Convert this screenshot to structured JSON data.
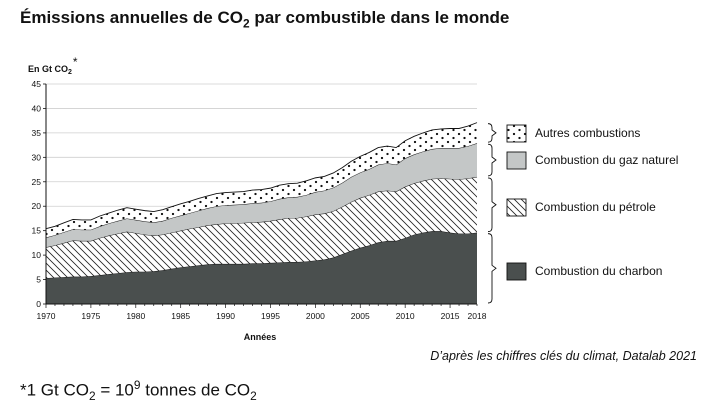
{
  "title": {
    "prefix": "Émissions annuelles de CO",
    "sub": "2",
    "suffix": " par combustible dans le monde"
  },
  "source": "D’après les chiffres clés du climat, Datalab 2021",
  "footnote": {
    "a": "*1 Gt CO",
    "sub": "2",
    "b": " = 10",
    "sup": "9",
    "c": " tonnes de CO",
    "sub2": "2"
  },
  "colors": {
    "coal": "#4a4f4e",
    "gas": "#c4c7c7",
    "oil_hatch": "#222222",
    "others_dot": "#111111",
    "outline": "#111111"
  },
  "chart_data": {
    "type": "area",
    "stacked": true,
    "ylabel": "En Gt CO",
    "ylabel_sub": "2",
    "ylabel_star": "*",
    "xlabel": "Années",
    "ylim": [
      0,
      45
    ],
    "xlim": [
      1970,
      2018
    ],
    "yticks": [
      0,
      5,
      10,
      15,
      20,
      25,
      30,
      35,
      40,
      45
    ],
    "xticks": [
      1970,
      1975,
      1980,
      1985,
      1990,
      1995,
      2000,
      2005,
      2010,
      2015,
      2018
    ],
    "grid": "horizontal",
    "legend_position": "right",
    "x": [
      1970,
      1971,
      1972,
      1973,
      1974,
      1975,
      1976,
      1977,
      1978,
      1979,
      1980,
      1981,
      1982,
      1983,
      1984,
      1985,
      1986,
      1987,
      1988,
      1989,
      1990,
      1991,
      1992,
      1993,
      1994,
      1995,
      1996,
      1997,
      1998,
      1999,
      2000,
      2001,
      2002,
      2003,
      2004,
      2005,
      2006,
      2007,
      2008,
      2009,
      2010,
      2011,
      2012,
      2013,
      2014,
      2015,
      2016,
      2017,
      2018
    ],
    "series": [
      {
        "name": "Combustion du charbon",
        "values": [
          5.3,
          5.4,
          5.5,
          5.6,
          5.6,
          5.7,
          5.9,
          6.1,
          6.3,
          6.5,
          6.6,
          6.6,
          6.7,
          6.9,
          7.2,
          7.5,
          7.7,
          7.9,
          8.1,
          8.2,
          8.2,
          8.2,
          8.2,
          8.3,
          8.3,
          8.4,
          8.5,
          8.6,
          8.6,
          8.7,
          8.9,
          9.1,
          9.5,
          10.2,
          10.9,
          11.5,
          12.0,
          12.6,
          12.9,
          12.9,
          13.5,
          14.2,
          14.6,
          14.9,
          14.9,
          14.6,
          14.4,
          14.4,
          14.6
        ]
      },
      {
        "name": "Combustion du pétrole",
        "values": [
          6.3,
          6.6,
          7.0,
          7.4,
          7.3,
          7.2,
          7.6,
          7.9,
          8.1,
          8.3,
          7.9,
          7.6,
          7.3,
          7.3,
          7.4,
          7.5,
          7.7,
          7.8,
          8.0,
          8.1,
          8.3,
          8.3,
          8.4,
          8.4,
          8.5,
          8.6,
          8.8,
          9.0,
          9.0,
          9.2,
          9.4,
          9.4,
          9.5,
          9.7,
          10.0,
          10.2,
          10.3,
          10.4,
          10.3,
          10.1,
          10.5,
          10.5,
          10.6,
          10.7,
          10.8,
          11.0,
          11.1,
          11.3,
          11.4
        ]
      },
      {
        "name": "Combustion du gaz naturel",
        "values": [
          2.0,
          2.1,
          2.2,
          2.3,
          2.3,
          2.3,
          2.4,
          2.5,
          2.6,
          2.7,
          2.7,
          2.7,
          2.7,
          2.8,
          3.0,
          3.1,
          3.2,
          3.4,
          3.5,
          3.7,
          3.7,
          3.8,
          3.8,
          3.9,
          3.9,
          4.0,
          4.2,
          4.2,
          4.3,
          4.4,
          4.6,
          4.7,
          4.8,
          4.9,
          5.1,
          5.2,
          5.3,
          5.5,
          5.6,
          5.5,
          5.8,
          5.9,
          6.0,
          6.1,
          6.2,
          6.3,
          6.4,
          6.6,
          6.9
        ]
      },
      {
        "name": "Autres combustions",
        "values": [
          1.8,
          1.8,
          1.9,
          2.0,
          2.0,
          2.0,
          2.1,
          2.1,
          2.2,
          2.2,
          2.2,
          2.2,
          2.2,
          2.3,
          2.3,
          2.4,
          2.4,
          2.5,
          2.5,
          2.6,
          2.6,
          2.6,
          2.6,
          2.7,
          2.7,
          2.7,
          2.8,
          2.8,
          2.8,
          2.9,
          2.9,
          2.9,
          3.0,
          3.1,
          3.2,
          3.3,
          3.4,
          3.5,
          3.5,
          3.5,
          3.6,
          3.7,
          3.8,
          3.9,
          3.9,
          4.0,
          4.0,
          4.1,
          4.2
        ]
      }
    ]
  }
}
